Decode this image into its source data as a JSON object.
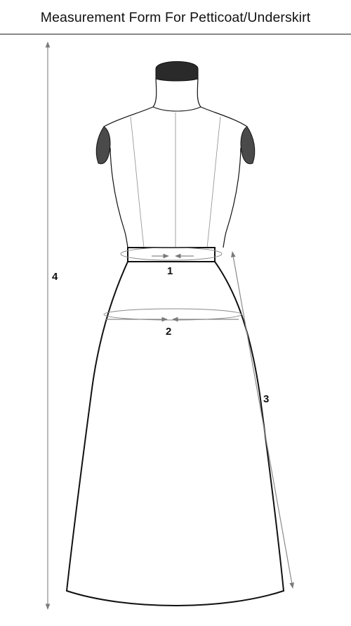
{
  "title": "Measurement Form For Petticoat/Underskirt",
  "labels": {
    "waist": "1",
    "hip": "2",
    "skirt_length": "3",
    "full_length": "4"
  },
  "colors": {
    "line": "#111111",
    "arrow": "#8a8a8a",
    "dress_form_cap": "#2a2a2a",
    "arm_cap": "#4a4a4a"
  }
}
